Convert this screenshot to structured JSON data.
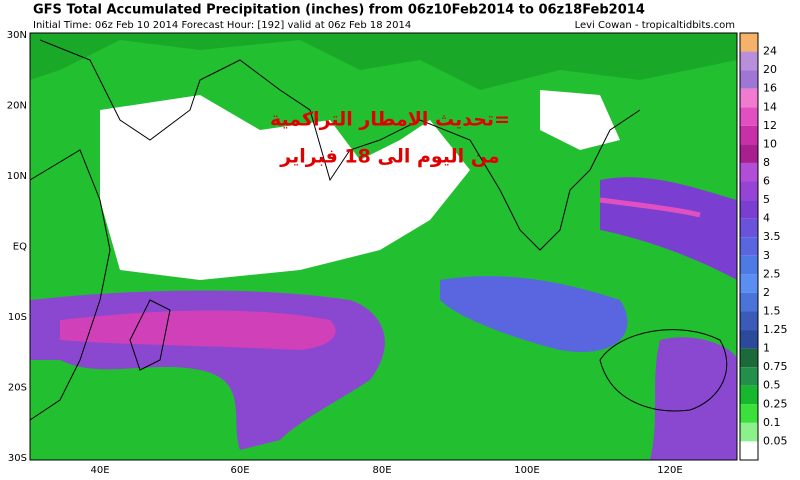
{
  "header": {
    "title": "GFS Total Accumulated Precipitation (inches) from 06z10Feb2014 to 06z18Feb2014",
    "subtitle": "Initial Time: 06z Feb 10 2014 Forecast Hour: [192] valid at 06z Feb 18 2014",
    "credit": "Levi Cowan - tropicaltidbits.com"
  },
  "annotation": {
    "line1": "=تحديث الامطار التراكمية",
    "line2": "من اليوم الى 18 فبراير"
  },
  "lat_labels": [
    "30N",
    "20N",
    "10N",
    "EQ",
    "10S",
    "20S",
    "30S"
  ],
  "lon_labels": [
    "40E",
    "60E",
    "80E",
    "100E",
    "120E"
  ],
  "colorbar": {
    "top_color": "#f4b26a",
    "items": [
      {
        "label": "24",
        "color": "#d4a6e0"
      },
      {
        "label": "20",
        "color": "#b98fdc"
      },
      {
        "label": "16",
        "color": "#9e77d4"
      },
      {
        "label": "14",
        "color": "#f07bd0"
      },
      {
        "label": "12",
        "color": "#e050c0"
      },
      {
        "label": "10",
        "color": "#c830a8"
      },
      {
        "label": "8",
        "color": "#a8208e"
      },
      {
        "label": "6",
        "color": "#b04ed8"
      },
      {
        "label": "5",
        "color": "#9544d6"
      },
      {
        "label": "4",
        "color": "#7a3ed0"
      },
      {
        "label": "3.5",
        "color": "#6a52dc"
      },
      {
        "label": "3",
        "color": "#5a66e0"
      },
      {
        "label": "2.5",
        "color": "#4e7ae4"
      },
      {
        "label": "2",
        "color": "#5a8ef0"
      },
      {
        "label": "1.5",
        "color": "#4a74d8"
      },
      {
        "label": "1.25",
        "color": "#3a5cb8"
      },
      {
        "label": "1",
        "color": "#2c4a9c"
      },
      {
        "label": "0.75",
        "color": "#1c6a3a"
      },
      {
        "label": "0.5",
        "color": "#22904a"
      },
      {
        "label": "0.25",
        "color": "#18b82e"
      },
      {
        "label": "0.1",
        "color": "#3ce03c"
      },
      {
        "label": "0.05",
        "color": "#8cf08c"
      }
    ],
    "bottom_color": "#ffffff"
  }
}
